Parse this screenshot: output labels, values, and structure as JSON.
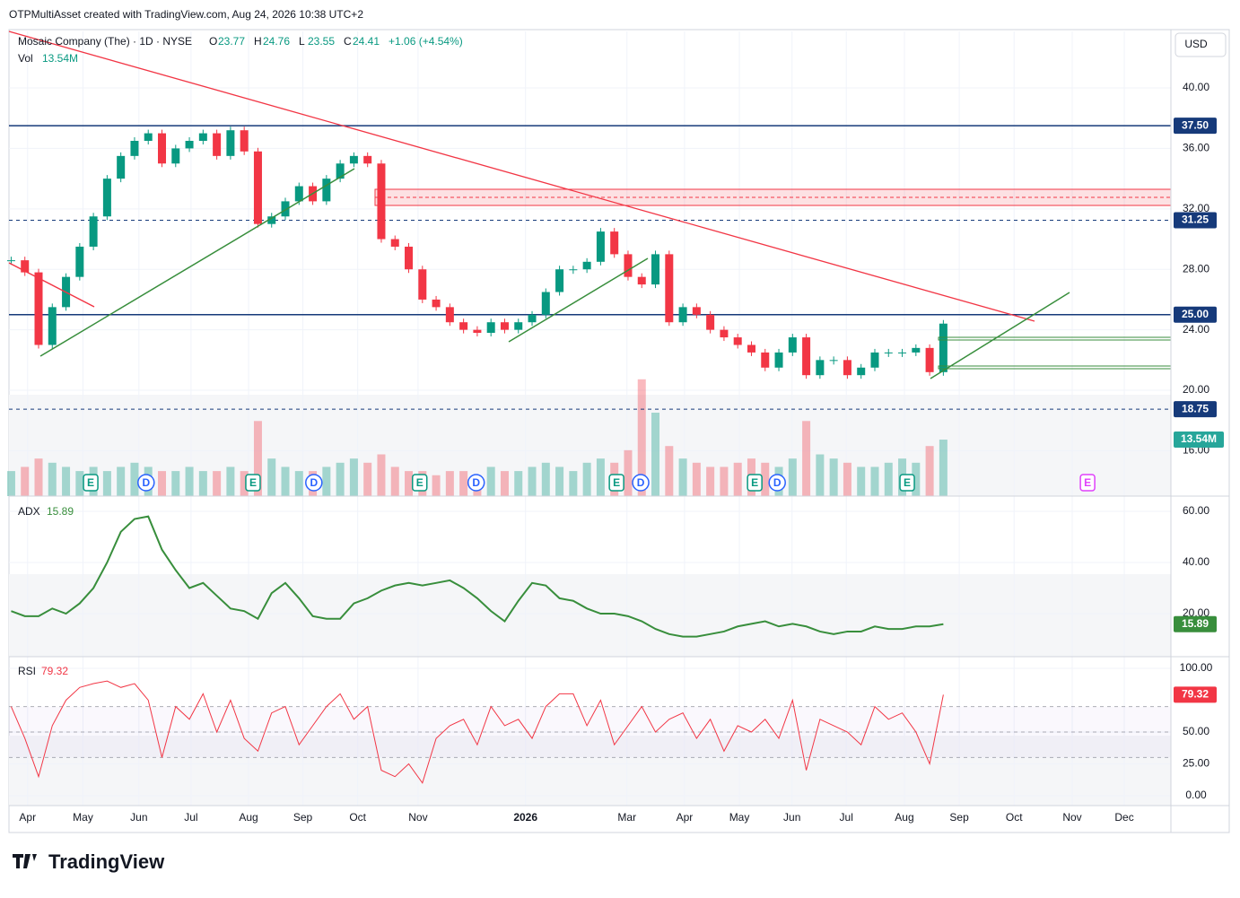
{
  "header": {
    "title": "OTPMultiAsset created with TradingView.com, Aug 24, 2026 10:38 UTC+2"
  },
  "chart_data": [
    {
      "type": "candlestick",
      "title": "Mosaic Company (The) · 1D · NYSE",
      "ohlc": [
        {
          "label": "O",
          "value": 23.77
        },
        {
          "label": "H",
          "value": 24.76
        },
        {
          "label": "L",
          "value": 23.55
        },
        {
          "label": "C",
          "value": 24.41
        }
      ],
      "change": "+1.06 (+4.54%)",
      "volume_name": "Vol",
      "volume_label": "13.54M",
      "currency": "USD",
      "x": [
        -0.3,
        -0.05,
        0.2,
        0.45,
        0.7,
        0.95,
        1.2,
        1.45,
        1.7,
        1.95,
        2.2,
        2.45,
        2.7,
        2.95,
        3.2,
        3.45,
        3.7,
        3.95,
        4.2,
        4.45,
        4.7,
        4.95,
        5.2,
        5.45,
        5.7,
        5.95,
        6.2,
        6.45,
        6.7,
        6.95,
        7.2,
        7.45,
        7.7,
        7.95,
        8.2,
        8.45,
        8.7,
        8.95,
        9.2,
        9.45,
        9.7,
        9.95,
        10.2,
        10.45,
        10.7,
        10.95,
        11.2,
        11.45,
        11.7,
        11.95,
        12.2,
        12.45,
        12.7,
        12.95,
        13.2,
        13.45,
        13.7,
        13.95,
        14.2,
        14.45,
        14.7,
        14.95,
        15.2,
        15.45,
        15.7,
        15.95,
        16.2,
        16.45,
        16.7
      ],
      "values": [
        28.6,
        27.8,
        23.0,
        25.5,
        27.5,
        29.5,
        31.5,
        34.0,
        35.5,
        36.5,
        37.0,
        35.0,
        36.0,
        36.5,
        37.0,
        35.5,
        37.2,
        35.8,
        31.0,
        31.5,
        32.5,
        33.5,
        32.5,
        34.0,
        35.0,
        35.5,
        35.0,
        30.0,
        29.5,
        28.0,
        26.0,
        25.5,
        24.5,
        24.0,
        23.8,
        24.5,
        24.0,
        24.5,
        25.0,
        26.5,
        28.0,
        28.0,
        28.5,
        30.5,
        29.0,
        27.5,
        27.0,
        29.0,
        24.5,
        25.5,
        25.0,
        24.0,
        23.5,
        23.0,
        22.5,
        21.5,
        22.5,
        23.5,
        21.0,
        22.0,
        22.0,
        21.0,
        21.5,
        22.5,
        22.5,
        22.5,
        22.8,
        21.2,
        24.41
      ],
      "volume": [
        6,
        7,
        9,
        8,
        7,
        6,
        7,
        6,
        7,
        8,
        7,
        6,
        6,
        7,
        6,
        6,
        7,
        6,
        18,
        9,
        7,
        6,
        6,
        7,
        8,
        9,
        8,
        10,
        7,
        6,
        6,
        5,
        6,
        6,
        5,
        7,
        6,
        6,
        7,
        8,
        7,
        6,
        8,
        9,
        8,
        11,
        28,
        20,
        12,
        9,
        8,
        7,
        7,
        8,
        9,
        8,
        7,
        9,
        18,
        10,
        9,
        8,
        7,
        7,
        8,
        9,
        8,
        12,
        13.54
      ],
      "up_color": "#089981",
      "down_color": "#f23645",
      "xlim": [
        -0.34,
        20.85
      ],
      "xticks": [
        {
          "value": 0,
          "label": "Apr"
        },
        {
          "value": 1.01,
          "label": "May"
        },
        {
          "value": 2.03,
          "label": "Jun"
        },
        {
          "value": 2.98,
          "label": "Jul"
        },
        {
          "value": 4.03,
          "label": "Aug"
        },
        {
          "value": 5.02,
          "label": "Sep"
        },
        {
          "value": 6.02,
          "label": "Oct"
        },
        {
          "value": 7.12,
          "label": "Nov"
        },
        {
          "value": 9.08,
          "label": "2026"
        },
        {
          "value": 10.93,
          "label": "Mar"
        },
        {
          "value": 11.98,
          "label": "Apr"
        },
        {
          "value": 12.98,
          "label": "May"
        },
        {
          "value": 13.94,
          "label": "Jun"
        },
        {
          "value": 14.93,
          "label": "Jul"
        },
        {
          "value": 15.99,
          "label": "Aug"
        },
        {
          "value": 16.99,
          "label": "Sep"
        },
        {
          "value": 17.99,
          "label": "Oct"
        },
        {
          "value": 19.05,
          "label": "Nov"
        },
        {
          "value": 20.0,
          "label": "Dec"
        }
      ],
      "ylim": [
        13.0,
        43.74
      ],
      "yticks": [
        {
          "value": 16,
          "label": "16.00"
        },
        {
          "value": 20,
          "label": "20.00"
        },
        {
          "value": 24,
          "label": "24.00"
        },
        {
          "value": 28,
          "label": "28.00"
        },
        {
          "value": 32,
          "label": "32.00"
        },
        {
          "value": 36,
          "label": "36.00"
        },
        {
          "value": 40,
          "label": "40.00"
        }
      ],
      "levels": [
        {
          "value": 37.5,
          "label": "37.50",
          "style": "solid"
        },
        {
          "value": 31.25,
          "label": "31.25",
          "style": "dashed"
        },
        {
          "value": 25,
          "label": "25.00",
          "style": "solid"
        },
        {
          "value": 18.75,
          "label": "18.75",
          "style": "dashed"
        }
      ],
      "level_color": "#163a7a",
      "events": [
        {
          "x": 1.15,
          "label": "E"
        },
        {
          "x": 2.16,
          "label": "D"
        },
        {
          "x": 4.11,
          "label": "E"
        },
        {
          "x": 5.22,
          "label": "D"
        },
        {
          "x": 7.15,
          "label": "E"
        },
        {
          "x": 8.18,
          "label": "D"
        },
        {
          "x": 10.74,
          "label": "E"
        },
        {
          "x": 11.18,
          "label": "D"
        },
        {
          "x": 13.26,
          "label": "E"
        },
        {
          "x": 13.67,
          "label": "D"
        },
        {
          "x": 16.04,
          "label": "E"
        },
        {
          "x": 19.33,
          "label": "E"
        }
      ],
      "grid": true
    },
    {
      "type": "line",
      "title": "ADX",
      "color": "#388e3c",
      "values": [
        21,
        19,
        19,
        22,
        20,
        24,
        30,
        40,
        52,
        57,
        58,
        45,
        37,
        30,
        32,
        27,
        22,
        21,
        18,
        28,
        32,
        26,
        19,
        18,
        18,
        24,
        26,
        29,
        31,
        32,
        31,
        32,
        33,
        30,
        26,
        21,
        17,
        25,
        32,
        31,
        26,
        25,
        22,
        20,
        20,
        19,
        17,
        14,
        12,
        11,
        11,
        12,
        13,
        15,
        16,
        17,
        15,
        16,
        15,
        13,
        12,
        13,
        13,
        15,
        14,
        14,
        15,
        15,
        15.89
      ],
      "ylim": [
        3.16,
        65.96
      ],
      "yticks": [
        {
          "value": 20,
          "label": "20.00"
        },
        {
          "value": 40,
          "label": "40.00"
        },
        {
          "value": 60,
          "label": "60.00"
        }
      ]
    },
    {
      "type": "line",
      "title": "RSI",
      "color": "#f23645",
      "values": [
        70,
        45,
        15,
        55,
        75,
        85,
        88,
        90,
        85,
        88,
        75,
        30,
        70,
        60,
        80,
        50,
        75,
        45,
        35,
        65,
        70,
        40,
        55,
        70,
        80,
        60,
        70,
        20,
        15,
        25,
        10,
        45,
        55,
        60,
        40,
        70,
        55,
        60,
        45,
        70,
        80,
        80,
        55,
        75,
        40,
        55,
        70,
        50,
        60,
        65,
        45,
        60,
        35,
        55,
        50,
        60,
        45,
        75,
        20,
        60,
        55,
        50,
        40,
        70,
        60,
        65,
        50,
        25,
        79.32
      ],
      "ylim": [
        -7.75,
        109.15
      ],
      "yticks": [
        {
          "value": 0,
          "label": "0.00"
        },
        {
          "value": 25,
          "label": "25.00"
        },
        {
          "value": 50,
          "label": "50.00"
        },
        {
          "value": 100,
          "label": "100.00"
        }
      ],
      "levels": [
        70,
        50,
        30
      ]
    }
  ],
  "footer": {
    "brand": "TradingView"
  }
}
